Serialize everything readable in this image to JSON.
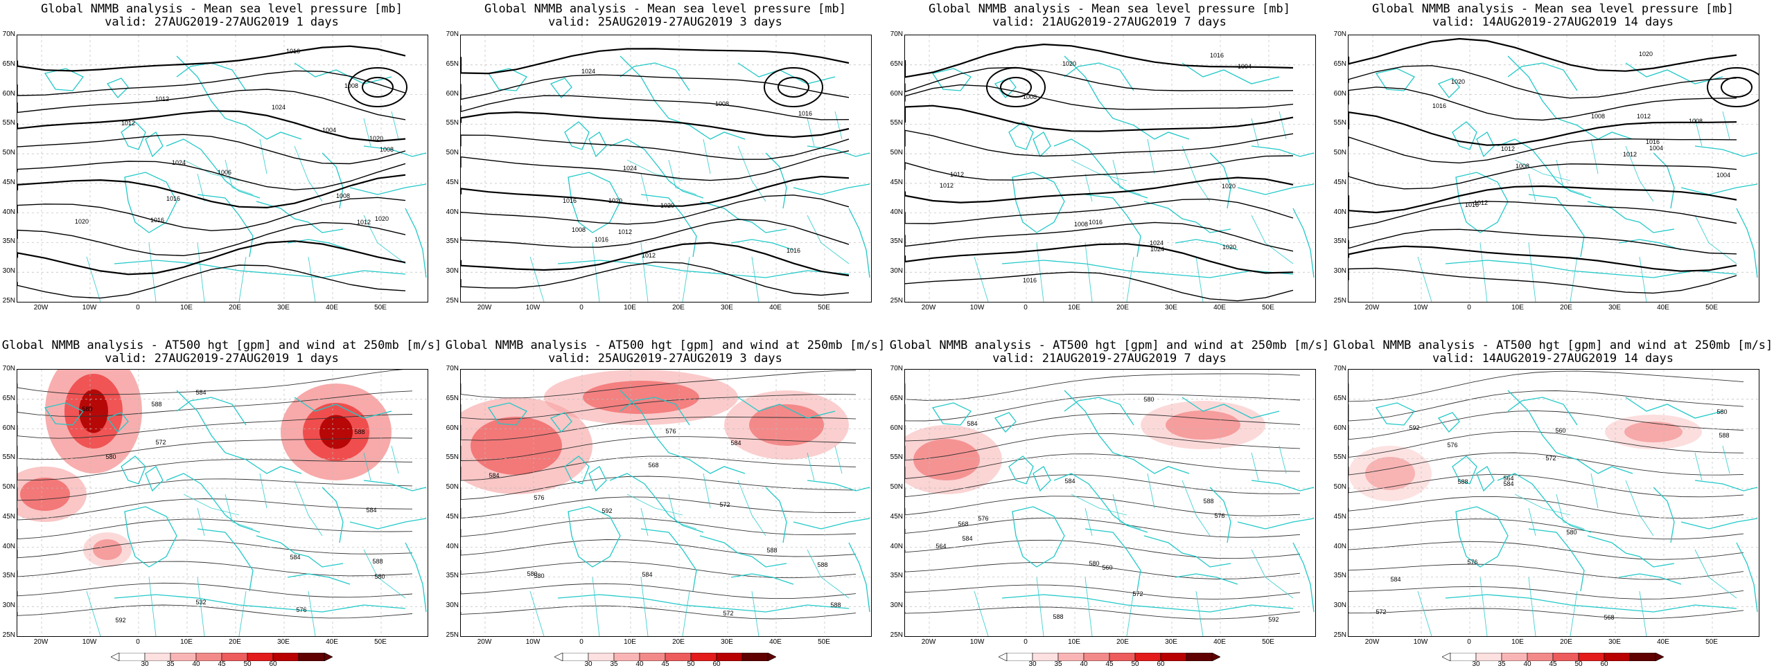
{
  "panels": [
    {
      "title_line1": "Global NMMB analysis - Mean sea level pressure [mb]",
      "title_line2": "valid: 27AUG2019-27AUG2019   1 days",
      "field": "mslp",
      "contour_labels": [
        "1012",
        "1020",
        "1024",
        "1008",
        "1024",
        "1020",
        "1016",
        "1016",
        "1012",
        "1008",
        "1012",
        "1008",
        "1004",
        "1016",
        "1020",
        "1006"
      ]
    },
    {
      "title_line1": "Global NMMB analysis - Mean sea level pressure [mb]",
      "title_line2": "valid: 25AUG2019-27AUG2019   3 days",
      "field": "mslp",
      "contour_labels": [
        "1020",
        "1024",
        "1016",
        "1024",
        "1020",
        "1016",
        "1016",
        "1012",
        "1008",
        "1012",
        "1008",
        "1016"
      ]
    },
    {
      "title_line1": "Global NMMB analysis - Mean sea level pressure [mb]",
      "title_line2": "valid: 21AUG2019-27AUG2019   7 days",
      "field": "mslp",
      "contour_labels": [
        "1020",
        "1024",
        "1016",
        "1020",
        "1024",
        "1020",
        "1016",
        "1012",
        "1008",
        "1012",
        "1008",
        "1004",
        "1016"
      ]
    },
    {
      "title_line1": "Global NMMB analysis - Mean sea level pressure [mb]",
      "title_line2": "valid: 14AUG2019-27AUG2019   14 days",
      "field": "mslp",
      "contour_labels": [
        "1008",
        "1004",
        "1012",
        "1016",
        "1020",
        "1016",
        "1020",
        "1012",
        "1016",
        "1008",
        "1012",
        "1008",
        "1004",
        "1012"
      ]
    },
    {
      "title_line1": "Global NMMB analysis - AT500 hgt [gpm] and wind at 250mb [m/s]",
      "title_line2": "valid: 27AUG2019-27AUG2019   1 days",
      "field": "z500",
      "contour_labels": [
        "532",
        "572",
        "580",
        "584",
        "588",
        "576",
        "580",
        "584",
        "588",
        "592",
        "588",
        "584",
        "580"
      ]
    },
    {
      "title_line1": "Global NMMB analysis - AT500 hgt [gpm] and wind at 250mb [m/s]",
      "title_line2": "valid: 25AUG2019-27AUG2019   3 days",
      "field": "z500",
      "contour_labels": [
        "568",
        "572",
        "576",
        "580",
        "584",
        "572",
        "576",
        "580",
        "584",
        "588",
        "592",
        "588",
        "584",
        "588"
      ]
    },
    {
      "title_line1": "Global NMMB analysis - AT500 hgt [gpm] and wind at 250mb [m/s]",
      "title_line2": "valid: 21AUG2019-27AUG2019   7 days",
      "field": "z500",
      "contour_labels": [
        "560",
        "564",
        "568",
        "572",
        "576",
        "580",
        "584",
        "576",
        "580",
        "584",
        "588",
        "592",
        "588",
        "584"
      ]
    },
    {
      "title_line1": "Global NMMB analysis - AT500 hgt [gpm] and wind at 250mb [m/s]",
      "title_line2": "valid: 14AUG2019-27AUG2019   14 days",
      "field": "z500",
      "contour_labels": [
        "560",
        "564",
        "568",
        "572",
        "576",
        "580",
        "584",
        "572",
        "576",
        "580",
        "584",
        "588",
        "592",
        "588"
      ]
    }
  ],
  "axes": {
    "lat_labels": [
      "70N",
      "65N",
      "60N",
      "55N",
      "50N",
      "45N",
      "40N",
      "35N",
      "30N",
      "25N"
    ],
    "lon_labels": [
      "20W",
      "10W",
      "0",
      "10E",
      "20E",
      "30E",
      "40E",
      "50E"
    ]
  },
  "colorbar": {
    "labels": [
      "30",
      "35",
      "40",
      "45",
      "50",
      "60"
    ],
    "colors": [
      "#ffffff",
      "#fde0e0",
      "#f9b5b5",
      "#f38a8a",
      "#ee5d5d",
      "#e31b1b",
      "#b80000",
      "#600000"
    ]
  },
  "colors": {
    "coast": "#22c8c8",
    "contour": "#000000",
    "grid": "#bbbbbb"
  }
}
